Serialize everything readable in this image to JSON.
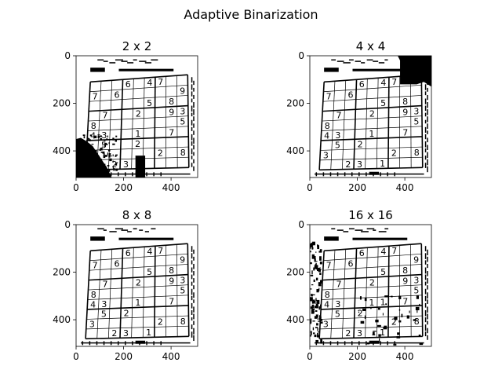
{
  "figure": {
    "suptitle": "Adaptive Binarization"
  },
  "chart_data": [
    {
      "type": "image",
      "title": "2 x 2",
      "xticks": [
        0,
        200,
        400
      ],
      "yticks": [
        0,
        200,
        400
      ],
      "xlim": [
        0,
        512
      ],
      "ylim": [
        512,
        0
      ],
      "grid": false,
      "content": {
        "digits": [
          [
            0,
            0,
            0,
            6,
            0,
            4,
            7,
            0,
            0
          ],
          [
            7,
            0,
            6,
            0,
            0,
            0,
            0,
            0,
            9
          ],
          [
            0,
            0,
            0,
            0,
            0,
            5,
            0,
            8,
            0
          ],
          [
            0,
            7,
            0,
            0,
            2,
            0,
            0,
            9,
            3
          ],
          [
            8,
            0,
            0,
            0,
            0,
            0,
            0,
            0,
            5
          ],
          [
            4,
            3,
            0,
            0,
            1,
            0,
            0,
            7,
            0
          ],
          [
            0,
            5,
            0,
            0,
            2,
            0,
            0,
            0,
            0
          ],
          [
            0,
            0,
            0,
            0,
            0,
            0,
            2,
            0,
            8
          ],
          [
            0,
            0,
            2,
            3,
            0,
            0,
            0,
            0,
            0
          ]
        ],
        "noise": "heavy-bottom-left"
      }
    },
    {
      "type": "image",
      "title": "4 x 4",
      "xticks": [
        0,
        200,
        400
      ],
      "yticks": [
        0,
        200,
        400
      ],
      "xlim": [
        0,
        512
      ],
      "ylim": [
        512,
        0
      ],
      "grid": false,
      "content": {
        "digits": [
          [
            0,
            0,
            0,
            6,
            0,
            4,
            7,
            0,
            0
          ],
          [
            7,
            0,
            6,
            0,
            0,
            0,
            0,
            0,
            0
          ],
          [
            0,
            0,
            0,
            0,
            0,
            5,
            0,
            8,
            0
          ],
          [
            0,
            7,
            0,
            0,
            2,
            0,
            0,
            9,
            3
          ],
          [
            8,
            0,
            0,
            0,
            0,
            0,
            0,
            0,
            5
          ],
          [
            4,
            3,
            0,
            0,
            1,
            0,
            0,
            7,
            0
          ],
          [
            0,
            5,
            0,
            2,
            0,
            0,
            0,
            0,
            0
          ],
          [
            3,
            0,
            0,
            0,
            0,
            0,
            2,
            0,
            8
          ],
          [
            0,
            0,
            2,
            3,
            0,
            1,
            0,
            0,
            0
          ]
        ],
        "noise": "top-right-block"
      }
    },
    {
      "type": "image",
      "title": "8 x 8",
      "xticks": [
        0,
        200,
        400
      ],
      "yticks": [
        0,
        200,
        400
      ],
      "xlim": [
        0,
        512
      ],
      "ylim": [
        512,
        0
      ],
      "grid": false,
      "content": {
        "digits": [
          [
            0,
            0,
            0,
            6,
            0,
            4,
            7,
            0,
            0
          ],
          [
            7,
            0,
            6,
            0,
            0,
            0,
            0,
            0,
            9
          ],
          [
            0,
            0,
            0,
            0,
            0,
            5,
            0,
            8,
            0
          ],
          [
            0,
            7,
            0,
            0,
            2,
            0,
            0,
            9,
            3
          ],
          [
            8,
            0,
            0,
            0,
            0,
            0,
            0,
            0,
            5
          ],
          [
            4,
            3,
            0,
            0,
            1,
            0,
            0,
            7,
            0
          ],
          [
            0,
            5,
            0,
            2,
            0,
            0,
            0,
            0,
            0
          ],
          [
            3,
            0,
            0,
            0,
            0,
            0,
            2,
            0,
            8
          ],
          [
            0,
            0,
            2,
            3,
            0,
            1,
            0,
            0,
            0
          ]
        ],
        "noise": "none"
      }
    },
    {
      "type": "image",
      "title": "16 x 16",
      "xticks": [
        0,
        200,
        400
      ],
      "yticks": [
        0,
        200,
        400
      ],
      "xlim": [
        0,
        512
      ],
      "ylim": [
        512,
        0
      ],
      "grid": false,
      "content": {
        "digits": [
          [
            0,
            0,
            0,
            6,
            0,
            4,
            7,
            0,
            0
          ],
          [
            7,
            0,
            6,
            0,
            0,
            0,
            0,
            0,
            9
          ],
          [
            0,
            0,
            0,
            0,
            0,
            5,
            0,
            8,
            0
          ],
          [
            0,
            7,
            0,
            0,
            2,
            0,
            0,
            9,
            3
          ],
          [
            8,
            0,
            0,
            0,
            0,
            0,
            0,
            0,
            5
          ],
          [
            4,
            3,
            0,
            0,
            1,
            1,
            0,
            7,
            0
          ],
          [
            0,
            5,
            0,
            2,
            0,
            0,
            0,
            0,
            0
          ],
          [
            3,
            0,
            0,
            0,
            0,
            0,
            2,
            0,
            8
          ],
          [
            0,
            0,
            2,
            3,
            0,
            1,
            0,
            0,
            0
          ]
        ],
        "noise": "speckle-left"
      }
    }
  ]
}
